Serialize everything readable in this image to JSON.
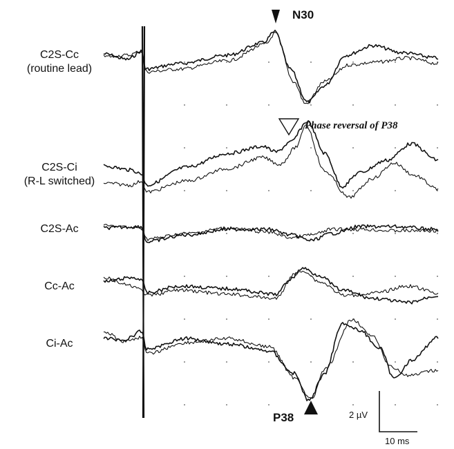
{
  "leads": [
    {
      "line1": "C2S-Cc",
      "line2": "(routine lead)"
    },
    {
      "line1": "C2S-Ci",
      "line2": "(R-L switched)"
    },
    {
      "line1": "C2S-Ac",
      "line2": ""
    },
    {
      "line1": "Cc-Ac",
      "line2": ""
    },
    {
      "line1": "Ci-Ac",
      "line2": ""
    }
  ],
  "markers": {
    "n30": "N30",
    "p38": "P38",
    "phase_reversal": "Phase reversal of P38"
  },
  "scale_bar": {
    "amplitude": "2 µV",
    "time": "10 ms"
  },
  "colors": {
    "trace": "#111111",
    "grid_dot": "#555555"
  }
}
